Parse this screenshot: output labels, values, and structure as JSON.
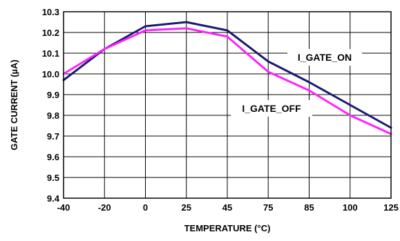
{
  "chart_data": {
    "type": "line",
    "title": "",
    "xlabel": "TEMPERATURE (°C)",
    "ylabel": "GATE CURRENT (µA)",
    "categories": [
      "-40",
      "-20",
      "0",
      "25",
      "45",
      "75",
      "85",
      "100",
      "125"
    ],
    "ylim": [
      9.4,
      10.3
    ],
    "yticks": [
      "10.3",
      "10.2",
      "10.1",
      "10.0",
      "9.9",
      "9.8",
      "9.7",
      "9.6",
      "9.5",
      "9.4"
    ],
    "grid": true,
    "series": [
      {
        "name": "I_GATE_ON",
        "color": "#1a1a6e",
        "values": [
          9.97,
          10.12,
          10.23,
          10.25,
          10.21,
          10.06,
          9.96,
          9.85,
          9.74
        ]
      },
      {
        "name": "I_GATE_OFF",
        "color": "#ff22ff",
        "values": [
          10.0,
          10.12,
          10.21,
          10.22,
          10.18,
          10.01,
          9.92,
          9.8,
          9.71
        ]
      }
    ]
  }
}
